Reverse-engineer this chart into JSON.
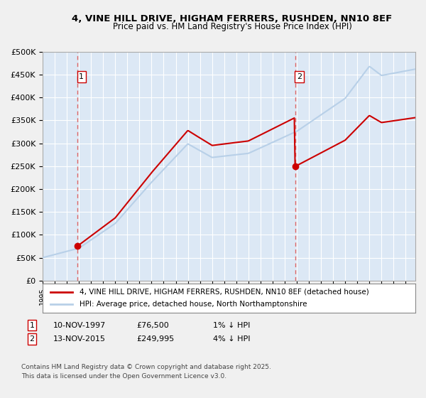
{
  "title": "4, VINE HILL DRIVE, HIGHAM FERRERS, RUSHDEN, NN10 8EF",
  "subtitle": "Price paid vs. HM Land Registry's House Price Index (HPI)",
  "legend_line1": "4, VINE HILL DRIVE, HIGHAM FERRERS, RUSHDEN, NN10 8EF (detached house)",
  "legend_line2": "HPI: Average price, detached house, North Northamptonshire",
  "annotation1_date": "10-NOV-1997",
  "annotation1_price": "£76,500",
  "annotation1_note": "1% ↓ HPI",
  "annotation2_date": "13-NOV-2015",
  "annotation2_price": "£249,995",
  "annotation2_note": "4% ↓ HPI",
  "footer": "Contains HM Land Registry data © Crown copyright and database right 2025.\nThis data is licensed under the Open Government Licence v3.0.",
  "sale1_year": 1997.86,
  "sale1_value": 76500,
  "sale2_year": 2015.86,
  "sale2_value": 249995,
  "hpi_color": "#b8d0e8",
  "price_color": "#cc0000",
  "vline_color": "#dd6666",
  "plot_bg": "#dce8f5",
  "grid_color": "#ffffff",
  "fig_bg": "#f0f0f0",
  "ylim": [
    0,
    500000
  ],
  "xlim_start": 1995,
  "xlim_end": 2025.8
}
